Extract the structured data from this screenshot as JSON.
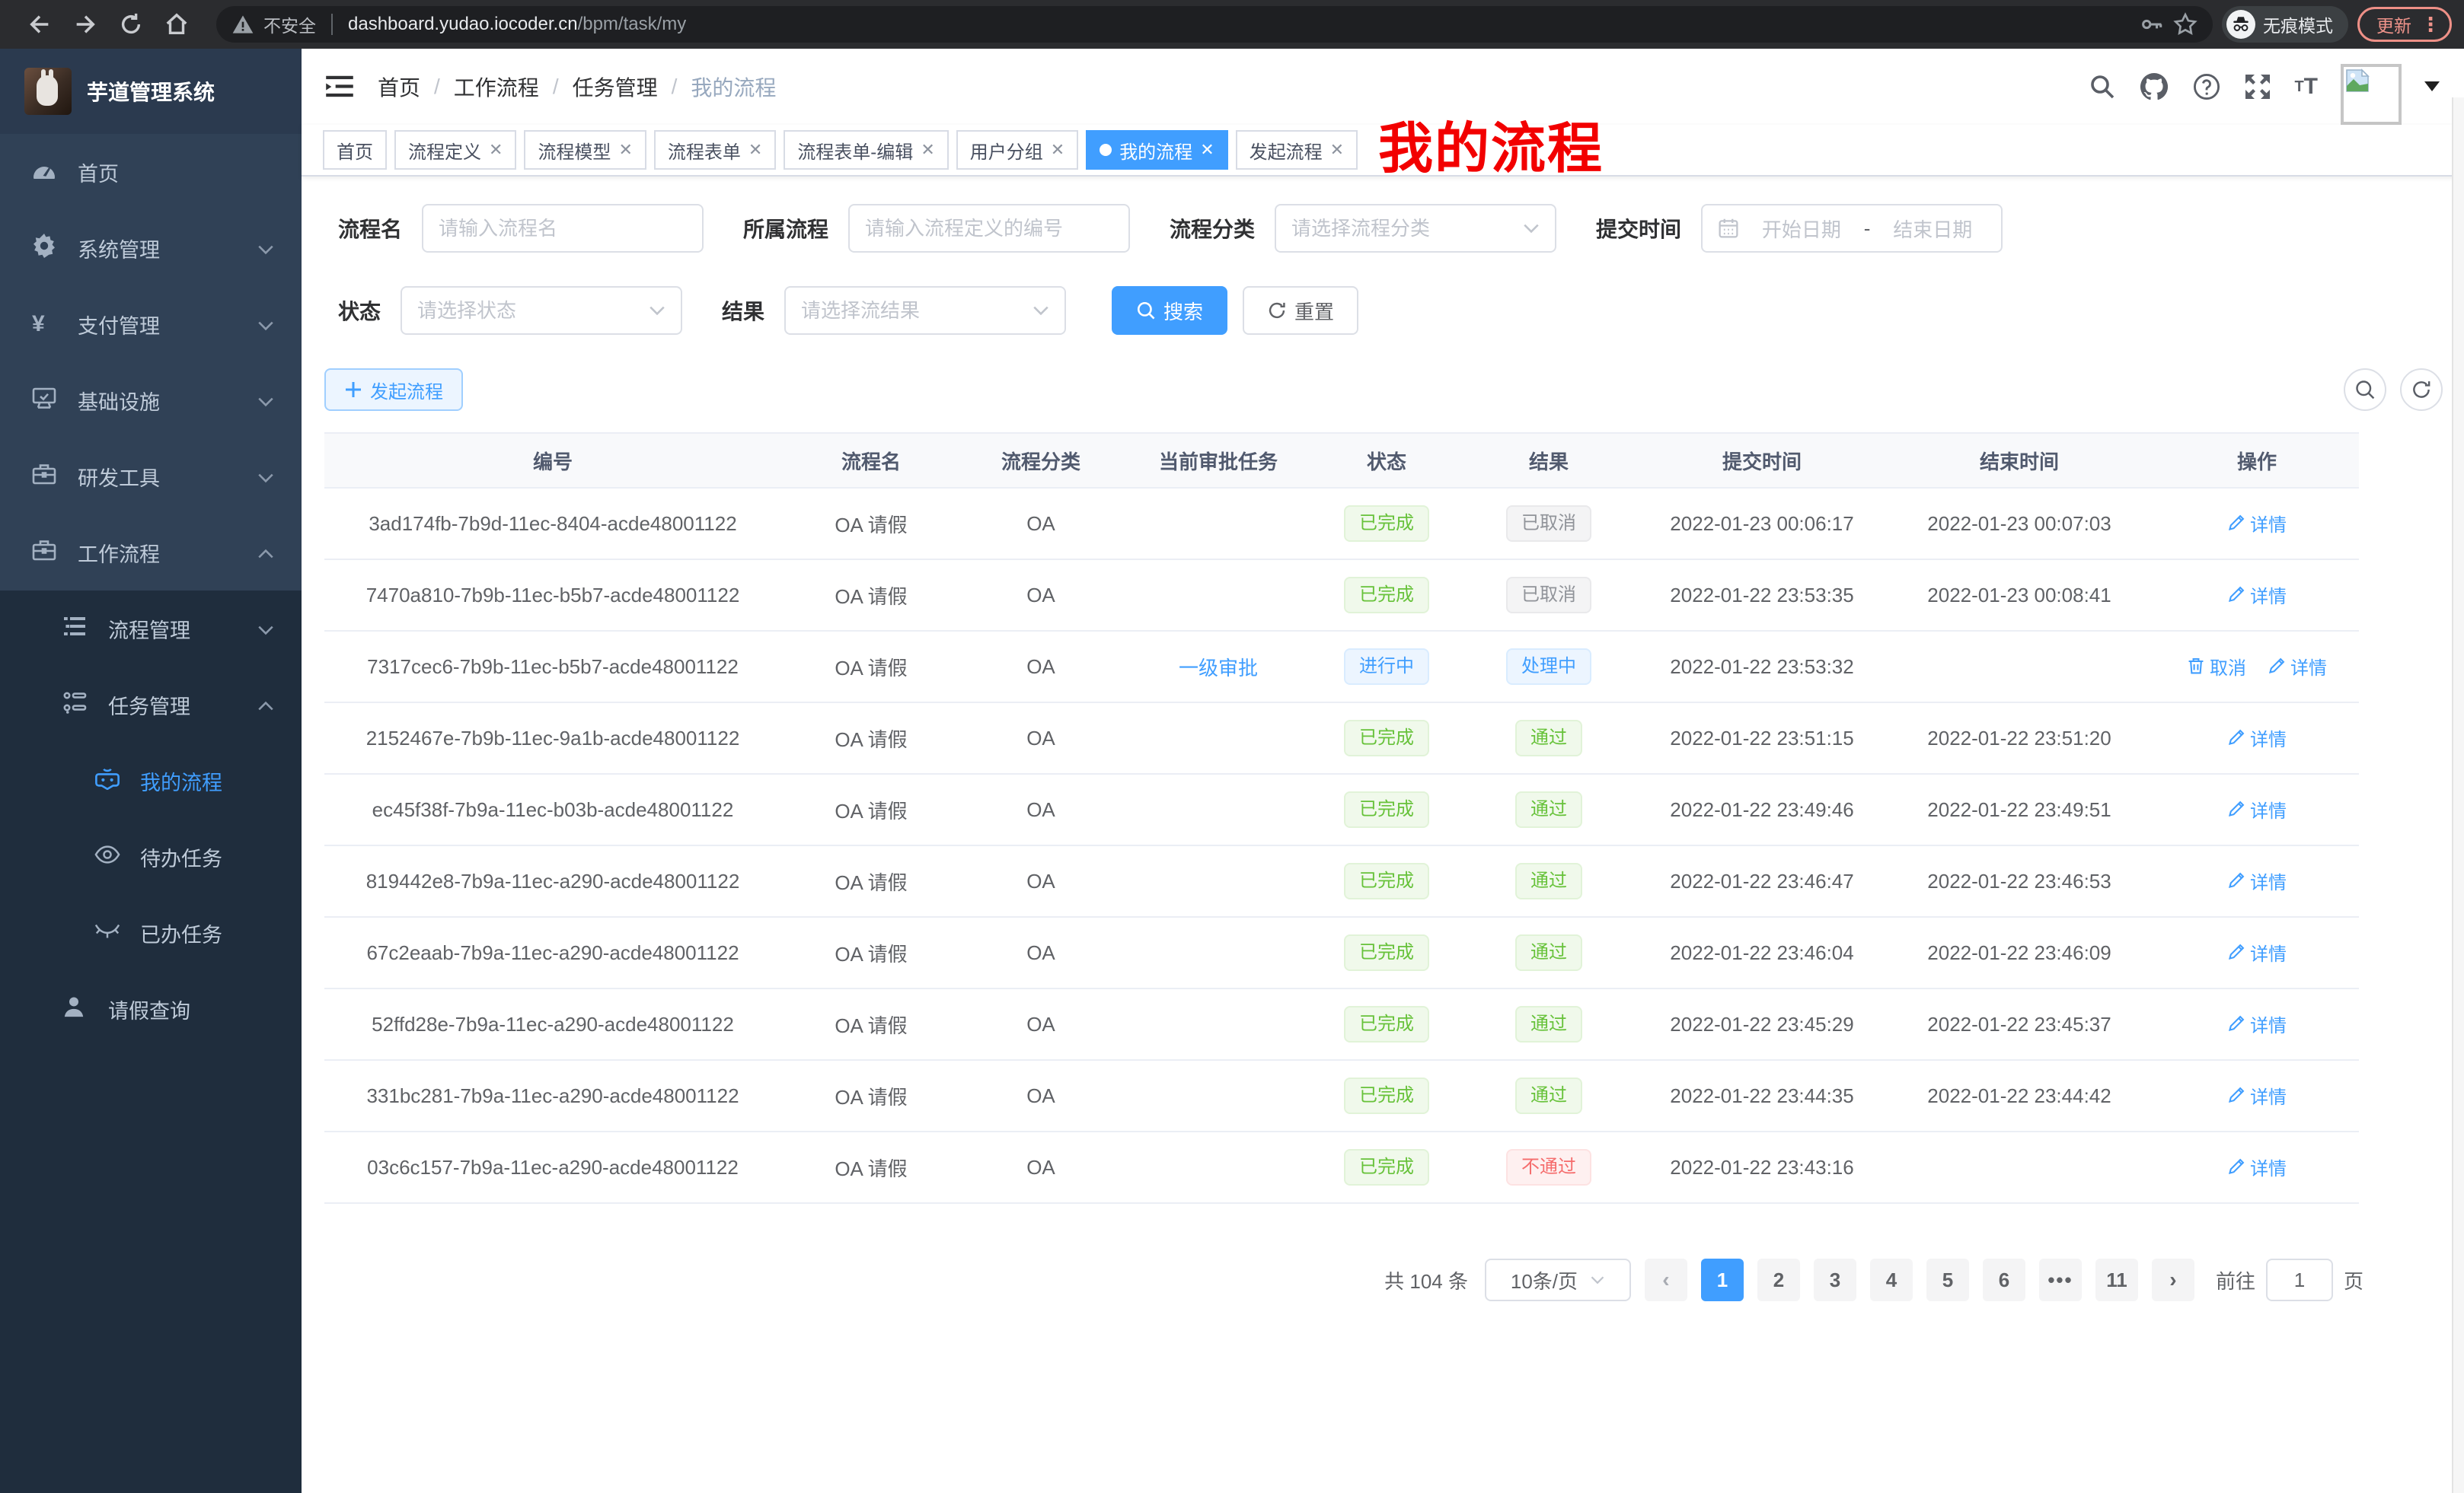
{
  "colors": {
    "primary": "#409eff",
    "success": "#67c23a",
    "danger": "#f56c6c",
    "info": "#909399",
    "sidebar_bg": "#304156",
    "submenu_bg": "#1f2d3d",
    "annotation_red": "#f20000"
  },
  "browser": {
    "security_label": "不安全",
    "url_host": "dashboard.yudao.iocoder.cn",
    "url_path": "/bpm/task/my",
    "incognito_label": "无痕模式",
    "update_label": "更新"
  },
  "sidebar": {
    "app_title": "芋道管理系统",
    "items": [
      {
        "key": "home",
        "label": "首页",
        "icon": "dashboard-icon",
        "depth": 0,
        "arrow": "",
        "active": false,
        "sub": false
      },
      {
        "key": "system",
        "label": "系统管理",
        "icon": "gear-icon",
        "depth": 0,
        "arrow": "down",
        "active": false,
        "sub": false
      },
      {
        "key": "payment",
        "label": "支付管理",
        "icon": "yen-icon",
        "depth": 0,
        "arrow": "down",
        "active": false,
        "sub": false
      },
      {
        "key": "infra",
        "label": "基础设施",
        "icon": "monitor-icon",
        "depth": 0,
        "arrow": "down",
        "active": false,
        "sub": false
      },
      {
        "key": "devtools",
        "label": "研发工具",
        "icon": "toolbox-icon",
        "depth": 0,
        "arrow": "down",
        "active": false,
        "sub": false
      },
      {
        "key": "workflow",
        "label": "工作流程",
        "icon": "briefcase-icon",
        "depth": 0,
        "arrow": "up",
        "active": false,
        "sub": false
      },
      {
        "key": "process-mgmt",
        "label": "流程管理",
        "icon": "list-icon",
        "depth": 1,
        "arrow": "down",
        "active": false,
        "sub": true
      },
      {
        "key": "task-mgmt",
        "label": "任务管理",
        "icon": "flow-icon",
        "depth": 1,
        "arrow": "up",
        "active": false,
        "sub": true
      },
      {
        "key": "my-process",
        "label": "我的流程",
        "icon": "robot-icon",
        "depth": 2,
        "arrow": "",
        "active": true,
        "sub": true
      },
      {
        "key": "todo-task",
        "label": "待办任务",
        "icon": "eye-icon",
        "depth": 2,
        "arrow": "",
        "active": false,
        "sub": true
      },
      {
        "key": "done-task",
        "label": "已办任务",
        "icon": "eye-closed-icon",
        "depth": 2,
        "arrow": "",
        "active": false,
        "sub": true
      },
      {
        "key": "leave-query",
        "label": "请假查询",
        "icon": "user-icon",
        "depth": 1,
        "arrow": "",
        "active": false,
        "sub": true
      }
    ]
  },
  "navbar": {
    "breadcrumb": [
      "首页",
      "工作流程",
      "任务管理",
      "我的流程"
    ]
  },
  "annotation": {
    "title": "我的流程"
  },
  "tabs": [
    {
      "key": "home",
      "label": "首页",
      "closable": false,
      "active": false
    },
    {
      "key": "process-def",
      "label": "流程定义",
      "closable": true,
      "active": false
    },
    {
      "key": "process-model",
      "label": "流程模型",
      "closable": true,
      "active": false
    },
    {
      "key": "process-form",
      "label": "流程表单",
      "closable": true,
      "active": false
    },
    {
      "key": "process-form-edit",
      "label": "流程表单-编辑",
      "closable": true,
      "active": false
    },
    {
      "key": "user-group",
      "label": "用户分组",
      "closable": true,
      "active": false
    },
    {
      "key": "my-process",
      "label": "我的流程",
      "closable": true,
      "active": true
    },
    {
      "key": "start-process",
      "label": "发起流程",
      "closable": true,
      "active": false
    }
  ],
  "filters": {
    "process_name": {
      "label": "流程名",
      "placeholder": "请输入流程名"
    },
    "process_def": {
      "label": "所属流程",
      "placeholder": "请输入流程定义的编号"
    },
    "category": {
      "label": "流程分类",
      "placeholder": "请选择流程分类"
    },
    "submit_time": {
      "label": "提交时间",
      "start_placeholder": "开始日期",
      "separator": "-",
      "end_placeholder": "结束日期"
    },
    "status": {
      "label": "状态",
      "placeholder": "请选择状态"
    },
    "result": {
      "label": "结果",
      "placeholder": "请选择流结果"
    },
    "search_label": "搜索",
    "reset_label": "重置"
  },
  "toolbar": {
    "create_label": "发起流程"
  },
  "table": {
    "columns": [
      "编号",
      "流程名",
      "流程分类",
      "当前审批任务",
      "状态",
      "结果",
      "提交时间",
      "结束时间",
      "操作"
    ],
    "rows": [
      {
        "id": "3ad174fb-7b9d-11ec-8404-acde48001122",
        "name": "OA 请假",
        "category": "OA",
        "current_task": "",
        "status": "已完成",
        "status_type": "success",
        "result": "已取消",
        "result_type": "info",
        "submit_time": "2022-01-23 00:06:17",
        "end_time": "2022-01-23 00:07:03",
        "actions": [
          {
            "label": "详情",
            "icon": "edit-icon"
          }
        ]
      },
      {
        "id": "7470a810-7b9b-11ec-b5b7-acde48001122",
        "name": "OA 请假",
        "category": "OA",
        "current_task": "",
        "status": "已完成",
        "status_type": "success",
        "result": "已取消",
        "result_type": "info",
        "submit_time": "2022-01-22 23:53:35",
        "end_time": "2022-01-23 00:08:41",
        "actions": [
          {
            "label": "详情",
            "icon": "edit-icon"
          }
        ]
      },
      {
        "id": "7317cec6-7b9b-11ec-b5b7-acde48001122",
        "name": "OA 请假",
        "category": "OA",
        "current_task": "一级审批",
        "status": "进行中",
        "status_type": "primary",
        "result": "处理中",
        "result_type": "primary",
        "submit_time": "2022-01-22 23:53:32",
        "end_time": "",
        "actions": [
          {
            "label": "取消",
            "icon": "trash-icon"
          },
          {
            "label": "详情",
            "icon": "edit-icon"
          }
        ]
      },
      {
        "id": "2152467e-7b9b-11ec-9a1b-acde48001122",
        "name": "OA 请假",
        "category": "OA",
        "current_task": "",
        "status": "已完成",
        "status_type": "success",
        "result": "通过",
        "result_type": "success",
        "submit_time": "2022-01-22 23:51:15",
        "end_time": "2022-01-22 23:51:20",
        "actions": [
          {
            "label": "详情",
            "icon": "edit-icon"
          }
        ]
      },
      {
        "id": "ec45f38f-7b9a-11ec-b03b-acde48001122",
        "name": "OA 请假",
        "category": "OA",
        "current_task": "",
        "status": "已完成",
        "status_type": "success",
        "result": "通过",
        "result_type": "success",
        "submit_time": "2022-01-22 23:49:46",
        "end_time": "2022-01-22 23:49:51",
        "actions": [
          {
            "label": "详情",
            "icon": "edit-icon"
          }
        ]
      },
      {
        "id": "819442e8-7b9a-11ec-a290-acde48001122",
        "name": "OA 请假",
        "category": "OA",
        "current_task": "",
        "status": "已完成",
        "status_type": "success",
        "result": "通过",
        "result_type": "success",
        "submit_time": "2022-01-22 23:46:47",
        "end_time": "2022-01-22 23:46:53",
        "actions": [
          {
            "label": "详情",
            "icon": "edit-icon"
          }
        ]
      },
      {
        "id": "67c2eaab-7b9a-11ec-a290-acde48001122",
        "name": "OA 请假",
        "category": "OA",
        "current_task": "",
        "status": "已完成",
        "status_type": "success",
        "result": "通过",
        "result_type": "success",
        "submit_time": "2022-01-22 23:46:04",
        "end_time": "2022-01-22 23:46:09",
        "actions": [
          {
            "label": "详情",
            "icon": "edit-icon"
          }
        ]
      },
      {
        "id": "52ffd28e-7b9a-11ec-a290-acde48001122",
        "name": "OA 请假",
        "category": "OA",
        "current_task": "",
        "status": "已完成",
        "status_type": "success",
        "result": "通过",
        "result_type": "success",
        "submit_time": "2022-01-22 23:45:29",
        "end_time": "2022-01-22 23:45:37",
        "actions": [
          {
            "label": "详情",
            "icon": "edit-icon"
          }
        ]
      },
      {
        "id": "331bc281-7b9a-11ec-a290-acde48001122",
        "name": "OA 请假",
        "category": "OA",
        "current_task": "",
        "status": "已完成",
        "status_type": "success",
        "result": "通过",
        "result_type": "success",
        "submit_time": "2022-01-22 23:44:35",
        "end_time": "2022-01-22 23:44:42",
        "actions": [
          {
            "label": "详情",
            "icon": "edit-icon"
          }
        ]
      },
      {
        "id": "03c6c157-7b9a-11ec-a290-acde48001122",
        "name": "OA 请假",
        "category": "OA",
        "current_task": "",
        "status": "已完成",
        "status_type": "success",
        "result": "不通过",
        "result_type": "danger",
        "submit_time": "2022-01-22 23:43:16",
        "end_time": "",
        "actions": [
          {
            "label": "详情",
            "icon": "edit-icon"
          }
        ]
      }
    ]
  },
  "pagination": {
    "total_text": "共 104 条",
    "page_size": "10条/页",
    "pages": [
      {
        "label": "1",
        "active": true,
        "more": false
      },
      {
        "label": "2",
        "active": false,
        "more": false
      },
      {
        "label": "3",
        "active": false,
        "more": false
      },
      {
        "label": "4",
        "active": false,
        "more": false
      },
      {
        "label": "5",
        "active": false,
        "more": false
      },
      {
        "label": "6",
        "active": false,
        "more": false
      },
      {
        "label": "•••",
        "active": false,
        "more": true
      },
      {
        "label": "11",
        "active": false,
        "more": false
      }
    ],
    "goto_label": "前往",
    "goto_value": "1",
    "goto_suffix": "页"
  }
}
